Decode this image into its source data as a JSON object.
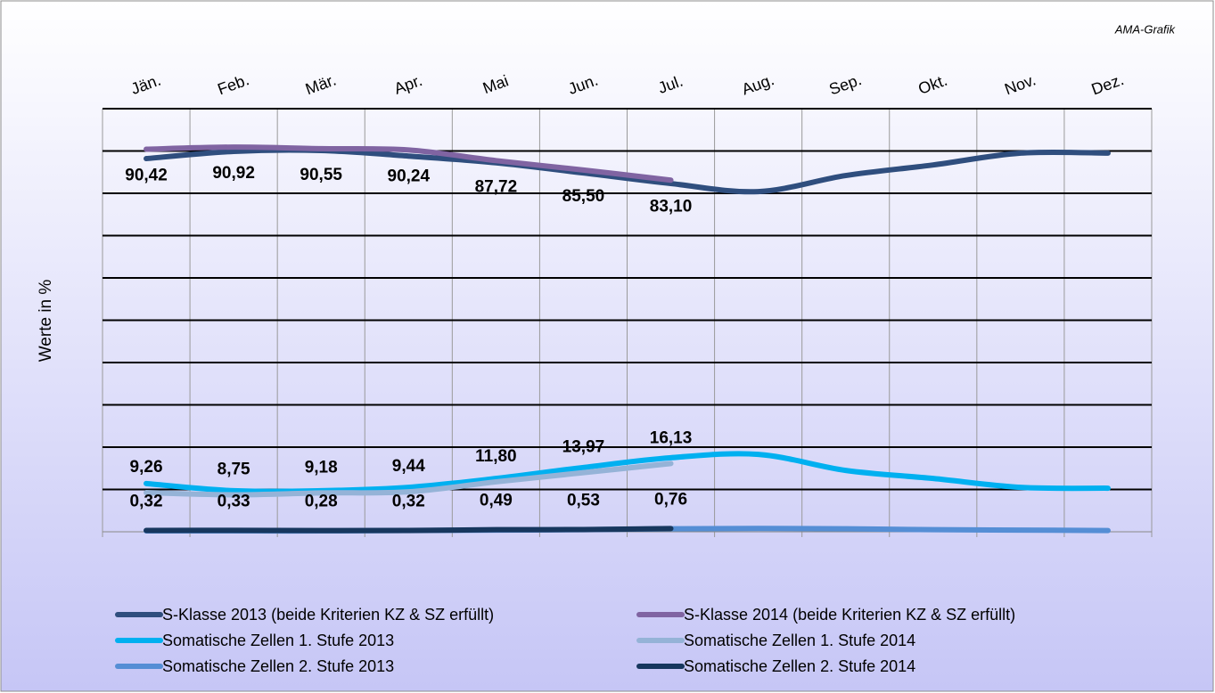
{
  "chart_data": {
    "type": "line",
    "annotation": "AMA-Grafik",
    "y_label": "Werte in %",
    "categories": [
      "Jän.",
      "Feb.",
      "Mär.",
      "Apr.",
      "Mai",
      "Jun.",
      "Jul.",
      "Aug.",
      "Sep.",
      "Okt.",
      "Nov.",
      "Dez."
    ],
    "ylim": [
      0,
      100
    ],
    "yticks": [
      0,
      10,
      20,
      30,
      40,
      50,
      60,
      70,
      80,
      90,
      100
    ],
    "grid": true,
    "series": [
      {
        "name": "S-Klasse 2013 (beide Kriterien KZ & SZ erfüllt)",
        "color": "#2f4e7e",
        "values": [
          88.2,
          89.9,
          90.1,
          88.8,
          87.2,
          84.8,
          82.3,
          80.4,
          84.2,
          86.7,
          89.5,
          89.5
        ]
      },
      {
        "name": "S-Klasse 2014 (beide Kriterien KZ & SZ erfüllt)",
        "color": "#8064a2",
        "values": [
          90.42,
          90.92,
          90.55,
          90.24,
          87.72,
          85.5,
          83.1,
          null,
          null,
          null,
          null,
          null
        ],
        "value_labels": [
          "90,42",
          "90,92",
          "90,55",
          "90,24",
          "87,72",
          "85,50",
          "83,10",
          null,
          null,
          null,
          null,
          null
        ]
      },
      {
        "name": "Somatische Zellen 1. Stufe 2013",
        "color": "#00b0f0",
        "values": [
          11.4,
          9.7,
          9.7,
          10.5,
          12.6,
          15.2,
          17.5,
          18.3,
          14.5,
          12.6,
          10.5,
          10.3
        ]
      },
      {
        "name": "Somatische Zellen 1. Stufe 2014",
        "color": "#95b3d7",
        "values": [
          9.26,
          8.75,
          9.18,
          9.44,
          11.8,
          13.97,
          16.13,
          null,
          null,
          null,
          null,
          null
        ],
        "value_labels": [
          "9,26",
          "8,75",
          "9,18",
          "9,44",
          "11,80",
          "13,97",
          "16,13",
          null,
          null,
          null,
          null,
          null
        ]
      },
      {
        "name": "Somatische Zellen 2. Stufe 2013",
        "color": "#558ed5",
        "values": [
          0.2,
          0.2,
          0.2,
          0.3,
          0.4,
          0.5,
          0.7,
          0.8,
          0.7,
          0.5,
          0.4,
          0.3
        ]
      },
      {
        "name": "Somatische Zellen 2. Stufe 2014",
        "color": "#17375e",
        "values": [
          0.32,
          0.33,
          0.28,
          0.32,
          0.49,
          0.53,
          0.76,
          null,
          null,
          null,
          null,
          null
        ],
        "value_labels": [
          "0,32",
          "0,33",
          "0,28",
          "0,32",
          "0,49",
          "0,53",
          "0,76",
          null,
          null,
          null,
          null,
          null
        ]
      }
    ]
  }
}
